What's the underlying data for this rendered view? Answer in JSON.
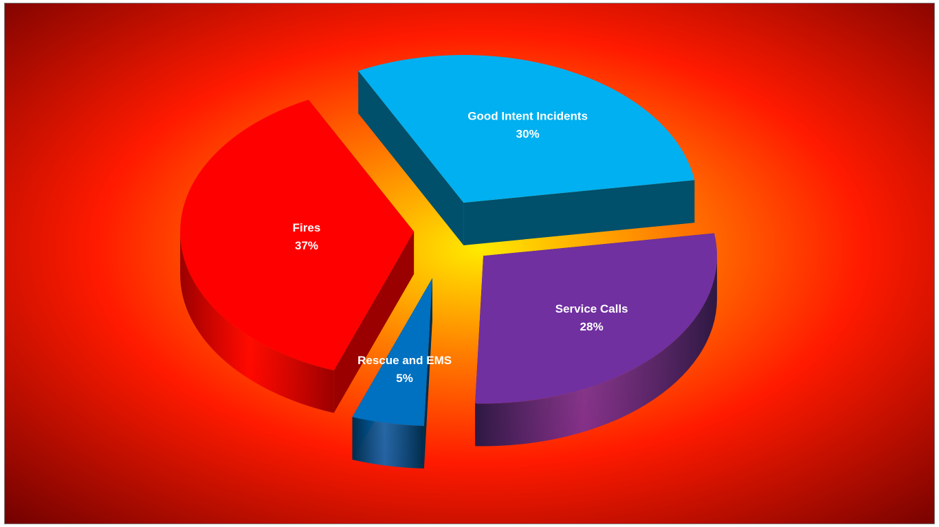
{
  "chart_data": {
    "type": "pie",
    "style": "3d-exploded",
    "title": "",
    "slices": [
      {
        "label": "Fires",
        "value": 37,
        "percent_label": "37%",
        "color": "#ff0000",
        "side_color": "#9b0000"
      },
      {
        "label": "Good Intent Incidents",
        "value": 30,
        "percent_label": "30%",
        "color": "#00b0f0",
        "side_color": "#004f6b"
      },
      {
        "label": "Service Calls",
        "value": 28,
        "percent_label": "28%",
        "color": "#7030a0",
        "side_color": "#2e1842"
      },
      {
        "label": "Rescue and EMS",
        "value": 5,
        "percent_label": "5%",
        "color": "#0070c0",
        "side_color": "#002b4a"
      }
    ],
    "background": {
      "center": "#ffea00",
      "mid": "#ff7a00",
      "outer": "#ff1a00",
      "edge": "#6b0000"
    }
  }
}
